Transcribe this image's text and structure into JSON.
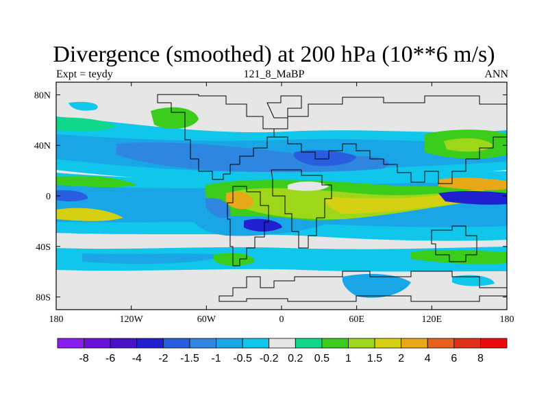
{
  "title": "Divergence (smoothed) at 200 hPa (10**6 m/s)",
  "left_label": "Expt = teydy",
  "center_label": "121_8_MaBP",
  "right_label": "ANN",
  "lon_ticks": [
    {
      "value": -180,
      "label": "180"
    },
    {
      "value": -120,
      "label": "120W"
    },
    {
      "value": -60,
      "label": "60W"
    },
    {
      "value": 0,
      "label": "0"
    },
    {
      "value": 60,
      "label": "60E"
    },
    {
      "value": 120,
      "label": "120E"
    },
    {
      "value": 180,
      "label": "180"
    }
  ],
  "lat_ticks": [
    {
      "value": 80,
      "label": "80N"
    },
    {
      "value": 40,
      "label": "40N"
    },
    {
      "value": 0,
      "label": "0"
    },
    {
      "value": -40,
      "label": "40S"
    },
    {
      "value": -80,
      "label": "80S"
    }
  ],
  "colorbar": {
    "labels": [
      "-8",
      "-6",
      "-4",
      "-2",
      "-1.5",
      "-1",
      "-0.5",
      "-0.2",
      "0.2",
      "0.5",
      "1",
      "1.5",
      "2",
      "4",
      "6",
      "8"
    ],
    "colors": [
      "#8a1cf2",
      "#6a10d8",
      "#4a12c8",
      "#2020d0",
      "#2a5ee0",
      "#2f86e0",
      "#1aa6e6",
      "#10c6ea",
      "#e6e6e6",
      "#0fd88a",
      "#3ccc1c",
      "#9ed61a",
      "#d6d012",
      "#e8a818",
      "#e8601c",
      "#e03018",
      "#e80c0c"
    ]
  },
  "map_colors": {
    "neutral": "#e6e6e6",
    "neg_02": "#10c6ea",
    "neg_05": "#1aa6e6",
    "neg_1": "#2f86e0",
    "neg_15": "#2a5ee0",
    "neg_2": "#2020d0",
    "pos_02": "#0fd88a",
    "pos_05": "#3ccc1c",
    "pos_1": "#9ed61a",
    "pos_15": "#d6d012",
    "pos_2": "#e8a818"
  }
}
